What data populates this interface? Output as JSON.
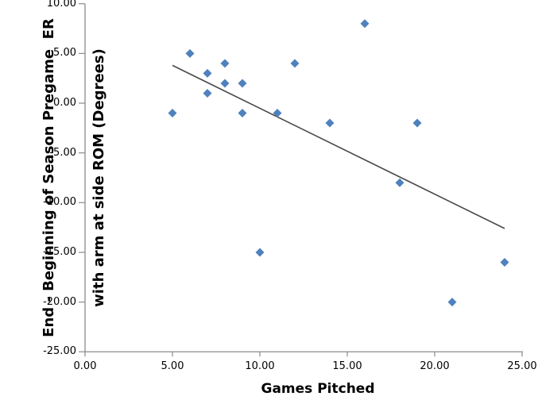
{
  "chart_data": {
    "type": "scatter",
    "title": "",
    "xlabel": "Games Pitched",
    "ylabel_line1": "End - Beginning of Season Pregame  ER",
    "ylabel_line2": "with arm at side ROM (Degrees)",
    "xlim": [
      0,
      25
    ],
    "ylim": [
      -25,
      10
    ],
    "grid": false,
    "legend": false,
    "x_ticks": [
      {
        "value": 0,
        "label": "0.00"
      },
      {
        "value": 5,
        "label": "5.00"
      },
      {
        "value": 10,
        "label": "10.00"
      },
      {
        "value": 15,
        "label": "15.00"
      },
      {
        "value": 20,
        "label": "20.00"
      },
      {
        "value": 25,
        "label": "25.00"
      }
    ],
    "y_ticks": [
      {
        "value": 10,
        "label": "10.00"
      },
      {
        "value": 5,
        "label": "5.00"
      },
      {
        "value": 0,
        "label": "0.00"
      },
      {
        "value": -5,
        "label": "-5.00"
      },
      {
        "value": -10,
        "label": "-10.00"
      },
      {
        "value": -15,
        "label": "-15.00"
      },
      {
        "value": -20,
        "label": "-20.00"
      },
      {
        "value": -25,
        "label": "-25.00"
      }
    ],
    "series": [
      {
        "marker": "diamond",
        "color": "#4F81BD",
        "points": [
          {
            "x": 5,
            "y": -1
          },
          {
            "x": 6,
            "y": 5
          },
          {
            "x": 7,
            "y": 3
          },
          {
            "x": 7,
            "y": 1
          },
          {
            "x": 8,
            "y": 4
          },
          {
            "x": 8,
            "y": 2
          },
          {
            "x": 9,
            "y": 2
          },
          {
            "x": 9,
            "y": -1
          },
          {
            "x": 10,
            "y": -15
          },
          {
            "x": 11,
            "y": -1
          },
          {
            "x": 12,
            "y": 4
          },
          {
            "x": 14,
            "y": -2
          },
          {
            "x": 16,
            "y": 8
          },
          {
            "x": 18,
            "y": -8
          },
          {
            "x": 19,
            "y": -2
          },
          {
            "x": 21,
            "y": -20
          },
          {
            "x": 24,
            "y": -16
          }
        ]
      }
    ],
    "trendline": {
      "x1": 5,
      "y1": 3.8,
      "x2": 24,
      "y2": -12.6,
      "color": "#4a4a4a"
    },
    "axis_color": "#8a8a8a",
    "text_color": "#000000"
  }
}
